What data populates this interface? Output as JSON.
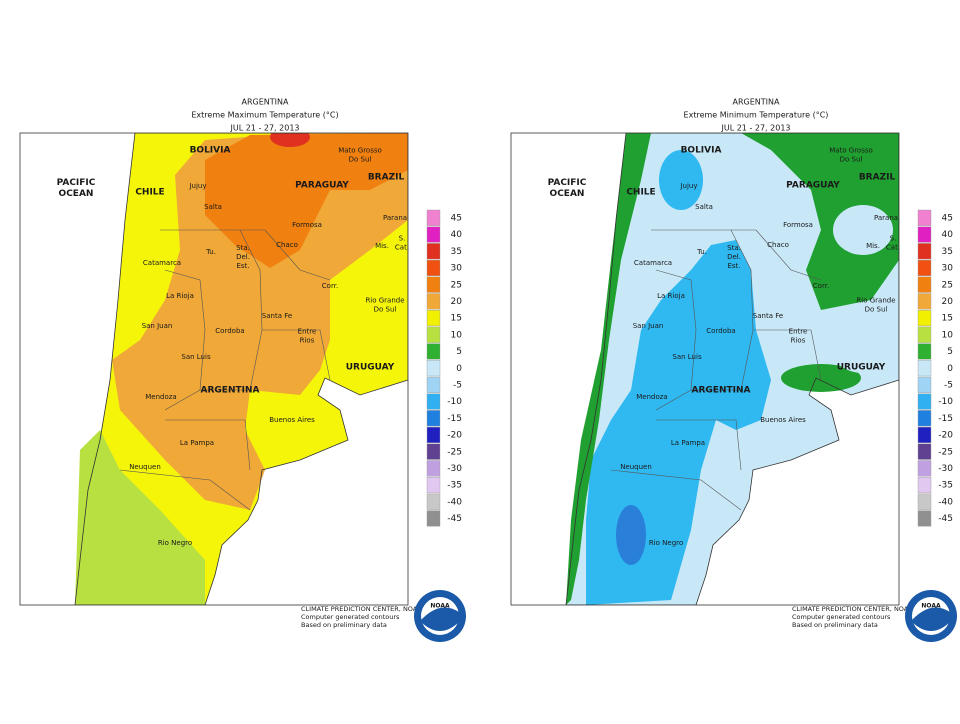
{
  "maps": [
    {
      "title": [
        "ARGENTINA",
        "Extreme Maximum Temperature (°C)",
        "JUL 21 - 27, 2013"
      ]
    },
    {
      "title": [
        "ARGENTINA",
        "Extreme Minimum Temperature (°C)",
        "JUL 21 - 27, 2013"
      ]
    }
  ],
  "place_labels": [
    [
      "PACIFIC",
      "OCEAN"
    ],
    [
      "BOLIVIA"
    ],
    [
      "CHILE"
    ],
    [
      "Jujuy"
    ],
    [
      "Salta"
    ],
    [
      "PARAGUAY"
    ],
    [
      "Mato Grosso",
      "Do Sul"
    ],
    [
      "BRAZIL"
    ],
    [
      "Formosa"
    ],
    [
      "Chaco"
    ],
    [
      "Tu."
    ],
    [
      "Sta.",
      "Del.",
      "Est."
    ],
    [
      "Catamarca"
    ],
    [
      "Parana"
    ],
    [
      "Mis."
    ],
    [
      "S.",
      "Cat."
    ],
    [
      "Corr."
    ],
    [
      "La Rioja"
    ],
    [
      "Rio Grande",
      "Do Sul"
    ],
    [
      "San Juan"
    ],
    [
      "Cordoba"
    ],
    [
      "Santa Fe"
    ],
    [
      "Entre",
      "Rios"
    ],
    [
      "San Luis"
    ],
    [
      "URUGUAY"
    ],
    [
      "Mendoza"
    ],
    [
      "ARGENTINA"
    ],
    [
      "Buenos Aires"
    ],
    [
      "La Pampa"
    ],
    [
      "Neuquen"
    ],
    [
      "Rio Negro"
    ]
  ],
  "legend": {
    "labels": [
      "45",
      "40",
      "35",
      "30",
      "25",
      "20",
      "15",
      "10",
      "5",
      "0",
      "-5",
      "-10",
      "-15",
      "-20",
      "-25",
      "-30",
      "-35",
      "-40",
      "-45"
    ],
    "colors": [
      "#f080d0",
      "#e020c0",
      "#e03020",
      "#f05010",
      "#f08010",
      "#f0a838",
      "#f0f000",
      "#b8e040",
      "#30b030",
      "#c8e8f8",
      "#a0d4f4",
      "#30b0f0",
      "#2080e0",
      "#2020c0",
      "#604090",
      "#c0a0e0",
      "#e0c8f0",
      "#c8c8c8",
      "#909090"
    ]
  },
  "footer": [
    "CLIMATE PREDICTION CENTER, NOAA",
    "Computer generated contours",
    "Based on preliminary data"
  ],
  "logo_text": "NOAA"
}
